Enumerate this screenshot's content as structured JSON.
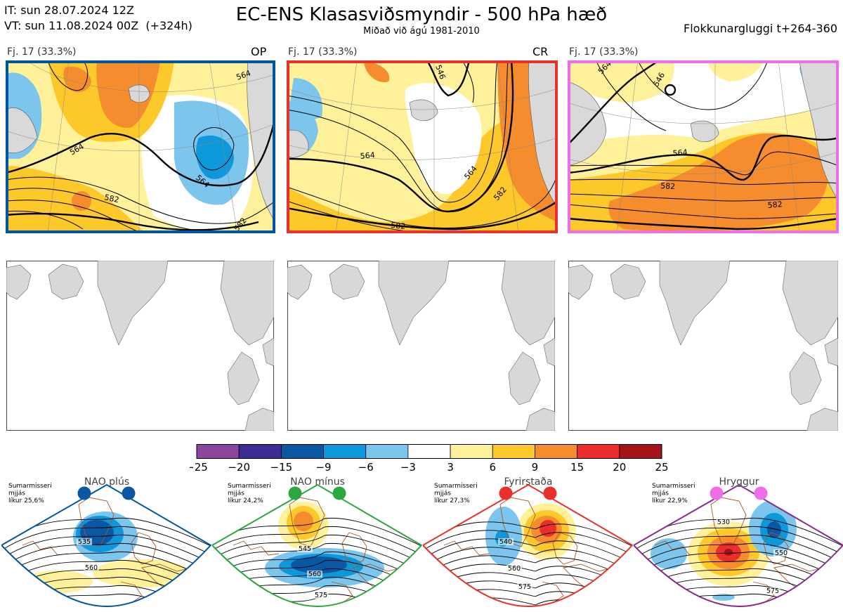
{
  "header": {
    "init_line": "IT: sun 28.07.2024 12Z",
    "valid_line": "VT: sun 11.08.2024 00Z  (+324h)",
    "title": "EC-ENS Klasasviðsmyndir - 500 hPa hæð",
    "subtitle": "Miðað við ágú 1981-2010",
    "window": "Flokkunargluggi t+264-360"
  },
  "panels": [
    {
      "label": "Fj. 17 (33.3%)",
      "tag": "OP",
      "border": "#0055a0",
      "contours": [
        "564",
        "564",
        "564",
        "582",
        "582"
      ]
    },
    {
      "label": "Fj. 17 (33.3%)",
      "tag": "CR",
      "border": "#e8312a",
      "contours": [
        "564",
        "564",
        "582",
        "582",
        "546"
      ]
    },
    {
      "label": "Fj. 17 (33.3%)",
      "tag": "",
      "border": "#ee6ee8",
      "contours": [
        "564",
        "546",
        "564",
        "582",
        "582"
      ]
    }
  ],
  "colorbar": {
    "colors": [
      "#8b479e",
      "#3b2d94",
      "#0a57a4",
      "#0d98dc",
      "#7cc5ec",
      "#ffffff",
      "#fff19a",
      "#fdc92a",
      "#f58c2d",
      "#eb2e2b",
      "#a5121a"
    ],
    "ticks": [
      "−25",
      "−20",
      "−15",
      "−9",
      "−6",
      "−3",
      "3",
      "6",
      "9",
      "15",
      "20",
      "25"
    ]
  },
  "regimes": [
    {
      "name": "NAO plús",
      "season": "Sumarmisseri",
      "stat": "mjjás",
      "prob": "líkur 25,6%",
      "color": "#0055a0",
      "dots": [
        "#0d56a6",
        "#0d56a6"
      ],
      "contours": [
        "535",
        "560"
      ]
    },
    {
      "name": "NAO mínus",
      "season": "Sumarmisseri",
      "stat": "mjjás",
      "prob": "líkur 24,2%",
      "color": "#2ba640",
      "dots": [
        "#2ba640",
        "#2ba640"
      ],
      "contours": [
        "545",
        "560",
        "575"
      ]
    },
    {
      "name": "Fyrirstaða",
      "season": "Sumarmisseri",
      "stat": "mjjás",
      "prob": "líkur 27,3%",
      "color": "#e8312a",
      "dots": [
        "#e8312a",
        "#e8312a"
      ],
      "contours": [
        "540",
        "560",
        "575"
      ]
    },
    {
      "name": "Hryggur",
      "season": "Sumarmisseri",
      "stat": "mjjás",
      "prob": "líkur 22,9%",
      "color": "#8a2a8e",
      "dots": [
        "#ee6ee8",
        "#ee6ee8"
      ],
      "contours": [
        "530",
        "550",
        "575"
      ]
    }
  ]
}
